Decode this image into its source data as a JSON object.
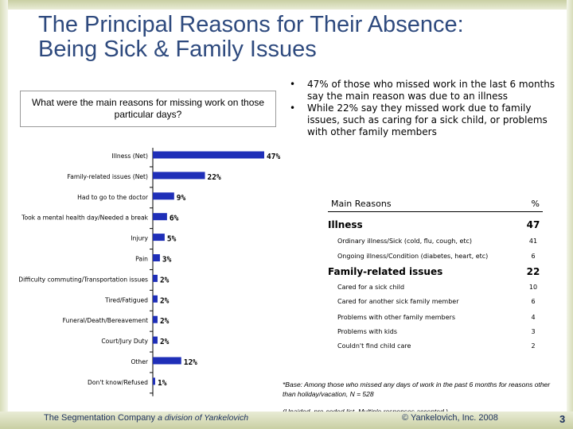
{
  "title_lines": [
    "The Principal Reasons for Their Absence:",
    "Being Sick & Family Issues"
  ],
  "question": "What were the main reasons for missing work on those particular days?",
  "bullets": [
    "47% of those who missed work in the last 6 months say the main reason was due to an illness",
    "While 22% say they missed work due to family issues, such as caring for a sick child, or problems with other family members"
  ],
  "chart_data": {
    "type": "bar",
    "orientation": "horizontal",
    "categories": [
      "Illness (Net)",
      "Family-related issues (Net)",
      "Had to go to the doctor",
      "Took a mental health day/Needed a break",
      "Injury",
      "Pain",
      "Difficulty commuting/Transportation issues",
      "Tired/Fatigued",
      "Funeral/Death/Bereavement",
      "Court/Jury Duty",
      "Other",
      "Don't know/Refused"
    ],
    "values": [
      47,
      22,
      9,
      6,
      5,
      3,
      2,
      2,
      2,
      2,
      12,
      1
    ],
    "data_labels": [
      "47%",
      "22%",
      "9%",
      "6%",
      "5%",
      "3%",
      "2%",
      "2%",
      "2%",
      "2%",
      "12%",
      "1%"
    ],
    "bar_color": "#1f2fb8",
    "xlim": [
      0,
      50
    ]
  },
  "table": {
    "header": {
      "label": "Main Reasons",
      "pct": "%"
    },
    "groups": [
      {
        "label": "Illness",
        "value": "47",
        "items": [
          {
            "label": "Ordinary illness/Sick (cold, flu, cough, etc)",
            "value": "41"
          },
          {
            "label": "Ongoing illness/Condition (diabetes, heart, etc)",
            "value": "6"
          }
        ]
      },
      {
        "label": "Family-related issues",
        "value": "22",
        "items": [
          {
            "label": "Cared for a sick child",
            "value": "10"
          },
          {
            "label": "Cared for another sick family member",
            "value": "6"
          },
          {
            "label": "Problems with other family members",
            "value": "4"
          },
          {
            "label": "Problems with kids",
            "value": "3"
          },
          {
            "label": "Couldn't find child care",
            "value": "2"
          }
        ]
      }
    ]
  },
  "footnote": {
    "base": "*Base: Among those who missed any days of work in the past 6 months for reasons other than holiday/vacation, N = 528",
    "note": "(Unaided, pre-coded list. Multiple responses accepted.)"
  },
  "footer": {
    "company": "The Segmentation Company",
    "division": "a division of Yankelovich",
    "copyright": "© Yankelovich, Inc. 2008",
    "page": "3"
  }
}
